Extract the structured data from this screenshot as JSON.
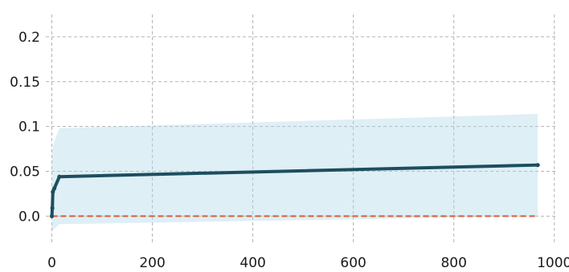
{
  "chart_data": {
    "type": "line",
    "title": "",
    "xlabel": "",
    "ylabel": "",
    "xlim": [
      -12,
      1002
    ],
    "ylim": [
      -0.031,
      0.225
    ],
    "x_ticks": [
      0,
      200,
      400,
      600,
      800,
      1000
    ],
    "x_tick_labels": [
      "0",
      "200",
      "400",
      "600",
      "800",
      "1000"
    ],
    "y_ticks": [
      0.0,
      0.05,
      0.1,
      0.15,
      0.2
    ],
    "y_tick_labels": [
      "0.0",
      "0.05",
      "0.1",
      "0.15",
      "0.2"
    ],
    "grid": true,
    "series": [
      {
        "style": "line-with-markers",
        "color": "#1d4e5f",
        "x": [
          0,
          1,
          2,
          5,
          15,
          967
        ],
        "y": [
          0.0,
          0.009,
          0.027,
          0.031,
          0.044,
          0.057
        ]
      }
    ],
    "band": {
      "color": "#add8e6",
      "x": [
        0,
        2,
        15,
        967
      ],
      "upper": [
        0.063,
        0.079,
        0.098,
        0.114
      ],
      "lower": [
        -0.013,
        -0.016,
        -0.009,
        0.0
      ]
    },
    "reference_line": {
      "y": 0.0,
      "x_range": [
        0,
        967
      ],
      "color": "#e05a33",
      "style": "dashed"
    }
  }
}
